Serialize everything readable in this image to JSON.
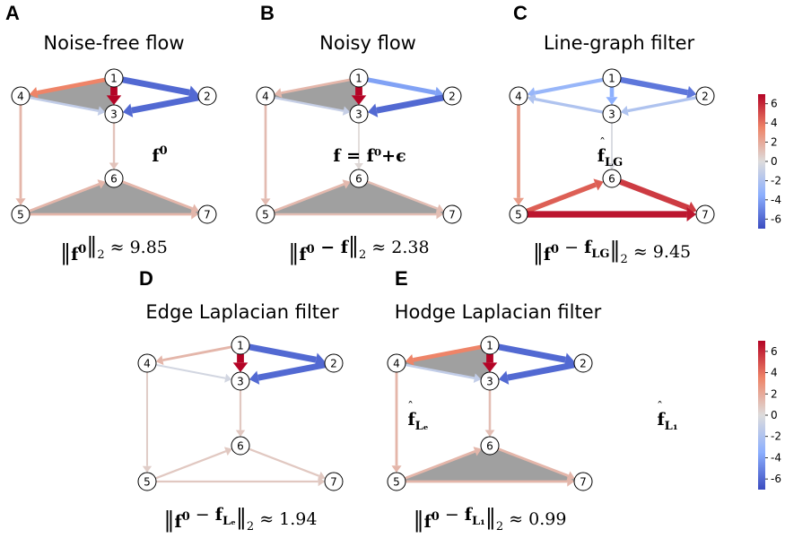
{
  "colors": {
    "face": "#a0a0a0",
    "node_stroke": "#000000",
    "node_fill": "#ffffff"
  },
  "colorbar": {
    "ticks": [
      "6",
      "4",
      "2",
      "0",
      "-2",
      "-4",
      "-6"
    ],
    "values": [
      6,
      4,
      2,
      0,
      -2,
      -4,
      -6
    ],
    "min": -7,
    "max": 7
  },
  "nodes": [
    "1",
    "2",
    "3",
    "4",
    "5",
    "6",
    "7"
  ],
  "panels": [
    {
      "letter": "A",
      "title": "Noise-free flow",
      "flow_base": "f",
      "flow_sup": "0",
      "flow_rest": "",
      "norm_lhs": "f",
      "norm_lhs_sup": "0",
      "norm_minus": "",
      "norm_hat": "",
      "norm_hat_sub": "",
      "norm_value": "≈ 9.85",
      "faces": [
        [
          1,
          3,
          4
        ],
        [
          5,
          6,
          7
        ]
      ],
      "edges": [
        {
          "from": 1,
          "to": 4,
          "value": 3.5
        },
        {
          "from": 1,
          "to": 3,
          "value": 7
        },
        {
          "from": 1,
          "to": 2,
          "value": -6
        },
        {
          "from": 2,
          "to": 3,
          "value": -6
        },
        {
          "from": 4,
          "to": 3,
          "value": -1.2
        },
        {
          "from": 4,
          "to": 5,
          "value": 1.5
        },
        {
          "from": 3,
          "to": 6,
          "value": 1
        },
        {
          "from": 5,
          "to": 6,
          "value": 1.5
        },
        {
          "from": 6,
          "to": 7,
          "value": 1.5
        },
        {
          "from": 5,
          "to": 7,
          "value": 1.5
        }
      ]
    },
    {
      "letter": "B",
      "title": "Noisy flow",
      "flow_base": "f",
      "flow_sup": "",
      "flow_rest": " = f⁰+ϵ",
      "norm_lhs": "f",
      "norm_lhs_sup": "0",
      "norm_minus": " − f",
      "norm_hat": "",
      "norm_hat_sub": "",
      "norm_value": "≈ 2.38",
      "faces": [
        [
          1,
          3,
          4
        ],
        [
          5,
          6,
          7
        ]
      ],
      "edges": [
        {
          "from": 1,
          "to": 4,
          "value": 1.5
        },
        {
          "from": 1,
          "to": 3,
          "value": 7
        },
        {
          "from": 1,
          "to": 2,
          "value": -4
        },
        {
          "from": 2,
          "to": 3,
          "value": -6
        },
        {
          "from": 4,
          "to": 3,
          "value": -1
        },
        {
          "from": 4,
          "to": 5,
          "value": 1.3
        },
        {
          "from": 3,
          "to": 6,
          "value": 0.2
        },
        {
          "from": 5,
          "to": 6,
          "value": 1.4
        },
        {
          "from": 6,
          "to": 7,
          "value": 1.2
        },
        {
          "from": 5,
          "to": 7,
          "value": 1.2
        }
      ]
    },
    {
      "letter": "C",
      "title": "Line-graph filter",
      "flow_base": "f",
      "flow_sup": "",
      "flow_rest": "",
      "flow_hat_sub": "LG",
      "norm_lhs": "f",
      "norm_lhs_sup": "0",
      "norm_minus": " − ",
      "norm_hat": "f",
      "norm_hat_sub": "LG",
      "norm_value": "≈ 9.45",
      "faces": [],
      "edges": [
        {
          "from": 1,
          "to": 4,
          "value": -3
        },
        {
          "from": 1,
          "to": 3,
          "value": -3.5
        },
        {
          "from": 1,
          "to": 2,
          "value": -5.5
        },
        {
          "from": 2,
          "to": 3,
          "value": -2
        },
        {
          "from": 3,
          "to": 4,
          "value": -2
        },
        {
          "from": 4,
          "to": 5,
          "value": 2.5
        },
        {
          "from": 3,
          "to": 6,
          "value": -0.3
        },
        {
          "from": 5,
          "to": 6,
          "value": 4.5
        },
        {
          "from": 6,
          "to": 7,
          "value": 5.5
        },
        {
          "from": 5,
          "to": 7,
          "value": 6.5
        }
      ]
    },
    {
      "letter": "D",
      "title": "Edge Laplacian filter",
      "flow_base": "f",
      "flow_sup": "",
      "flow_rest": "",
      "flow_hat_sub": "Lₑ",
      "norm_lhs": "f",
      "norm_lhs_sup": "0",
      "norm_minus": " − ",
      "norm_hat": "f",
      "norm_hat_sub": "Lₑ",
      "norm_value": "≈ 1.94",
      "faces": [],
      "edges": [
        {
          "from": 1,
          "to": 4,
          "value": 1.5
        },
        {
          "from": 1,
          "to": 3,
          "value": 7
        },
        {
          "from": 1,
          "to": 2,
          "value": -6
        },
        {
          "from": 2,
          "to": 3,
          "value": -6
        },
        {
          "from": 4,
          "to": 3,
          "value": -0.5
        },
        {
          "from": 4,
          "to": 5,
          "value": 0.6
        },
        {
          "from": 3,
          "to": 6,
          "value": 0.8
        },
        {
          "from": 5,
          "to": 6,
          "value": 0.8
        },
        {
          "from": 6,
          "to": 7,
          "value": 0.8
        },
        {
          "from": 5,
          "to": 7,
          "value": 0.8
        }
      ]
    },
    {
      "letter": "E",
      "title": "Hodge Laplacian filter",
      "flow_base": "f",
      "flow_sup": "",
      "flow_rest": "",
      "flow_hat_sub": "L₁",
      "norm_lhs": "f",
      "norm_lhs_sup": "0",
      "norm_minus": " − ",
      "norm_hat": "f",
      "norm_hat_sub": "L₁",
      "norm_value": "≈ 0.99",
      "faces": [
        [
          1,
          3,
          4
        ],
        [
          5,
          6,
          7
        ]
      ],
      "edges": [
        {
          "from": 1,
          "to": 4,
          "value": 3.5
        },
        {
          "from": 1,
          "to": 3,
          "value": 7
        },
        {
          "from": 1,
          "to": 2,
          "value": -6
        },
        {
          "from": 2,
          "to": 3,
          "value": -6
        },
        {
          "from": 4,
          "to": 3,
          "value": -1.2
        },
        {
          "from": 4,
          "to": 5,
          "value": 1.5
        },
        {
          "from": 3,
          "to": 6,
          "value": 1.2
        },
        {
          "from": 5,
          "to": 6,
          "value": 1.5
        },
        {
          "from": 6,
          "to": 7,
          "value": 1.5
        },
        {
          "from": 5,
          "to": 7,
          "value": 1.5
        }
      ]
    }
  ]
}
